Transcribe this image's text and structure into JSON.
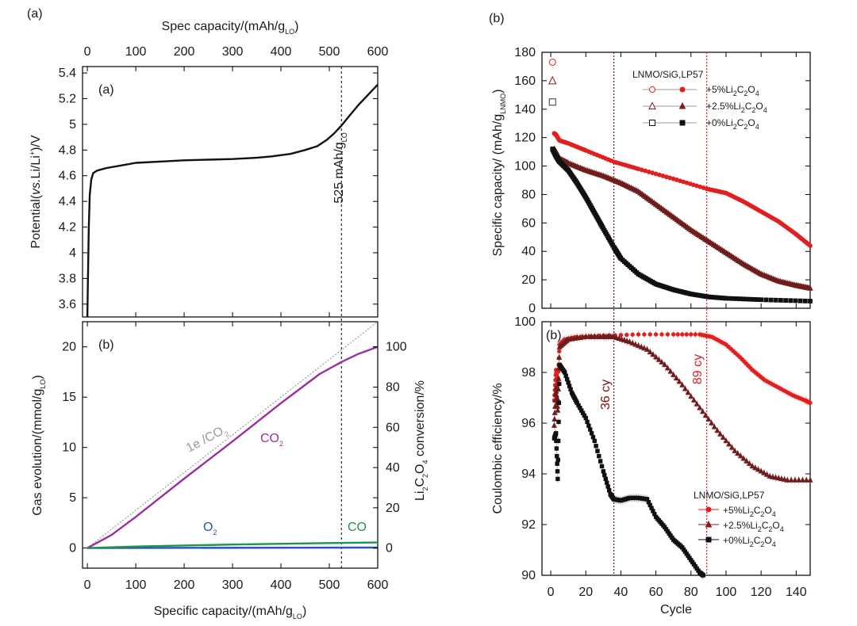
{
  "figure_labels": {
    "left_panel": "(a)",
    "right_panel": "(b)"
  },
  "chart_data": [
    {
      "type": "line",
      "panel_label": "(a)",
      "top_axis": {
        "label": "Spec capacity/(mAh/g",
        "label_sub": "LO",
        "label_tail": ")",
        "ticks": [
          0,
          100,
          200,
          300,
          400,
          500,
          600
        ]
      },
      "ylabel": {
        "pre": "Potential(",
        "italic": "vs.",
        "mid": "Li/Li",
        "sup": "+",
        "post": ")/V"
      },
      "xlim": [
        -10,
        600
      ],
      "ylim": [
        3.5,
        5.45
      ],
      "yticks": [
        3.6,
        3.8,
        4.0,
        4.2,
        4.4,
        4.6,
        4.8,
        5.0,
        5.2,
        5.4
      ],
      "marker_line": {
        "x": 525,
        "label": "525 mAh/g",
        "label_sub": "LO"
      },
      "series": [
        {
          "color": "#111111",
          "points": [
            [
              0,
              3.5
            ],
            [
              1,
              3.75
            ],
            [
              3,
              4.2
            ],
            [
              5,
              4.45
            ],
            [
              8,
              4.57
            ],
            [
              12,
              4.62
            ],
            [
              20,
              4.64
            ],
            [
              40,
              4.66
            ],
            [
              70,
              4.68
            ],
            [
              100,
              4.7
            ],
            [
              150,
              4.71
            ],
            [
              200,
              4.72
            ],
            [
              250,
              4.725
            ],
            [
              300,
              4.73
            ],
            [
              350,
              4.74
            ],
            [
              380,
              4.75
            ],
            [
              420,
              4.77
            ],
            [
              450,
              4.8
            ],
            [
              475,
              4.83
            ],
            [
              495,
              4.88
            ],
            [
              510,
              4.93
            ],
            [
              525,
              4.99
            ],
            [
              540,
              5.06
            ],
            [
              560,
              5.15
            ],
            [
              580,
              5.23
            ],
            [
              595,
              5.29
            ],
            [
              600,
              5.31
            ]
          ]
        }
      ]
    },
    {
      "type": "line",
      "panel_label": "(b)",
      "xlabel": "Specific capacity/(mAh/g",
      "xlabel_sub": "LO",
      "xlabel_tail": ")",
      "ylabel": "Gas evolution/(mmol/g",
      "ylabel_sub": "LO",
      "ylabel_tail": ")",
      "y2label": {
        "pre": "Li",
        "s1": "2",
        "m1": "C",
        "s2": "2",
        "m2": "O",
        "s3": "4",
        "post": " conversion/%"
      },
      "xlim": [
        -10,
        600
      ],
      "ylim": [
        -2,
        22.5
      ],
      "y2lim": [
        -10,
        112.5
      ],
      "xticks": [
        0,
        100,
        200,
        300,
        400,
        500,
        600
      ],
      "yticks": [
        0,
        5,
        10,
        15,
        20
      ],
      "y2ticks": [
        0,
        20,
        40,
        60,
        80,
        100
      ],
      "marker_line": {
        "x": 525
      },
      "series": [
        {
          "name": "1e /CO",
          "name_sub": "2",
          "color": "#9a9a9a",
          "dashed": true,
          "points": [
            [
              0,
              0
            ],
            [
              600,
              22.5
            ]
          ]
        },
        {
          "name": "CO",
          "name_sub": "2",
          "color": "#9b2f9c",
          "points": [
            [
              0,
              0
            ],
            [
              50,
              1.3
            ],
            [
              100,
              3.1
            ],
            [
              200,
              6.9
            ],
            [
              300,
              10.6
            ],
            [
              400,
              14.4
            ],
            [
              480,
              17.3
            ],
            [
              525,
              18.5
            ],
            [
              560,
              19.3
            ],
            [
              600,
              20.0
            ]
          ]
        },
        {
          "name": "O",
          "name_sub": "2",
          "color": "#2456b4",
          "points": [
            [
              0,
              0
            ],
            [
              600,
              0.05
            ]
          ]
        },
        {
          "name": "CO",
          "name_sub": "",
          "color": "#20944a",
          "points": [
            [
              0,
              0
            ],
            [
              100,
              0.15
            ],
            [
              300,
              0.35
            ],
            [
              500,
              0.5
            ],
            [
              600,
              0.55
            ]
          ]
        }
      ]
    },
    {
      "type": "scatter",
      "panel_label": "",
      "ylabel": "Specific capacity/ (mAh/g",
      "ylabel_sub": "LNMO",
      "ylabel_tail": ")",
      "xlim": [
        -5,
        148
      ],
      "ylim": [
        0,
        180
      ],
      "yticks": [
        0,
        20,
        40,
        60,
        80,
        100,
        120,
        140,
        160,
        180
      ],
      "legend": {
        "title": "LNMO/SiG,LP57",
        "position": "top-right",
        "entries": [
          {
            "pre": "+5%Li",
            "s1": "2",
            "m1": "C",
            "s2": "2",
            "m2": "O",
            "s3": "4",
            "open": "circle",
            "color": "#e02020"
          },
          {
            "pre": "+2.5%Li",
            "s1": "2",
            "m1": "C",
            "s2": "2",
            "m2": "O",
            "s3": "4",
            "open": "triangle",
            "color": "#8b1a1a"
          },
          {
            "pre": "+0%Li",
            "s1": "2",
            "m1": "C",
            "s2": "2",
            "m2": "O",
            "s3": "4",
            "open": "square",
            "color": "#111111"
          }
        ]
      },
      "first_cycle_points": [
        {
          "x": 1,
          "y": 173,
          "marker": "circle",
          "color": "#e02020"
        },
        {
          "x": 1,
          "y": 160,
          "marker": "triangle",
          "color": "#8b1a1a"
        },
        {
          "x": 1,
          "y": 145,
          "marker": "square",
          "color": "#333333"
        }
      ],
      "series": [
        {
          "name": "+5%Li2C2O4",
          "color": "#e02020",
          "marker": "circle",
          "points": [
            [
              2,
              123
            ],
            [
              3,
              122
            ],
            [
              5,
              118
            ],
            [
              10,
              116
            ],
            [
              20,
              111
            ],
            [
              36,
              103
            ],
            [
              50,
              98
            ],
            [
              70,
              91
            ],
            [
              89,
              84
            ],
            [
              100,
              81
            ],
            [
              110,
              75
            ],
            [
              120,
              68
            ],
            [
              130,
              61
            ],
            [
              140,
              52
            ],
            [
              148,
              44
            ]
          ]
        },
        {
          "name": "+2.5%Li2C2O4",
          "color": "#6e1c1c",
          "marker": "triangle",
          "points": [
            [
              2,
              112
            ],
            [
              4,
              108
            ],
            [
              5,
              105
            ],
            [
              10,
              102
            ],
            [
              20,
              97
            ],
            [
              30,
              93
            ],
            [
              40,
              88
            ],
            [
              50,
              82
            ],
            [
              60,
              73
            ],
            [
              70,
              64
            ],
            [
              80,
              55
            ],
            [
              90,
              47
            ],
            [
              100,
              39
            ],
            [
              110,
              31
            ],
            [
              120,
              24
            ],
            [
              130,
              19
            ],
            [
              140,
              16
            ],
            [
              148,
              14
            ]
          ]
        },
        {
          "name": "+0%Li2C2O4",
          "color": "#111111",
          "marker": "square",
          "points": [
            [
              1,
              112
            ],
            [
              3,
              107
            ],
            [
              5,
              103
            ],
            [
              10,
              97
            ],
            [
              15,
              88
            ],
            [
              20,
              78
            ],
            [
              25,
              67
            ],
            [
              30,
              56
            ],
            [
              36,
              43
            ],
            [
              40,
              35
            ],
            [
              50,
              24
            ],
            [
              60,
              17
            ],
            [
              70,
              13
            ],
            [
              80,
              10
            ],
            [
              90,
              8
            ],
            [
              100,
              7
            ],
            [
              120,
              6
            ],
            [
              148,
              5
            ]
          ]
        }
      ]
    },
    {
      "type": "scatter",
      "panel_label": "(b)",
      "xlabel": "Cycle",
      "ylabel": "Coulombic efficiency/%",
      "xlim": [
        -5,
        148
      ],
      "ylim": [
        90,
        100
      ],
      "xticks": [
        0,
        20,
        40,
        60,
        80,
        100,
        120,
        140
      ],
      "yticks": [
        90,
        92,
        94,
        96,
        98,
        100
      ],
      "vlines": [
        {
          "x": 36,
          "label": "36 cy",
          "color": "#7a1414"
        },
        {
          "x": 89,
          "label": "89 cy",
          "color": "#e02020"
        }
      ],
      "legend": {
        "title": "LNMO/SiG,LP57",
        "position": "bottom-right",
        "entries": [
          {
            "pre": "+5%Li",
            "s1": "2",
            "m1": "C",
            "s2": "2",
            "m2": "O",
            "s3": "4",
            "color": "#e02020",
            "marker": "circle"
          },
          {
            "pre": "+2.5%Li",
            "s1": "2",
            "m1": "C",
            "s2": "2",
            "m2": "O",
            "s3": "4",
            "color": "#8b1a1a",
            "marker": "triangle"
          },
          {
            "pre": "+0%Li",
            "s1": "2",
            "m1": "C",
            "s2": "2",
            "m2": "O",
            "s3": "4",
            "color": "#111111",
            "marker": "square"
          }
        ]
      },
      "series": [
        {
          "name": "+5%Li2C2O4",
          "color": "#e02020",
          "marker": "circle",
          "points": [
            [
              2,
              96.9
            ],
            [
              3,
              98.1
            ],
            [
              4,
              97.5
            ],
            [
              5,
              99.1
            ],
            [
              8,
              99.3
            ],
            [
              15,
              99.4
            ],
            [
              30,
              99.45
            ],
            [
              50,
              99.5
            ],
            [
              70,
              99.5
            ],
            [
              85,
              99.5
            ],
            [
              92,
              99.4
            ],
            [
              100,
              99.1
            ],
            [
              108,
              98.6
            ],
            [
              115,
              98.1
            ],
            [
              122,
              97.7
            ],
            [
              130,
              97.4
            ],
            [
              138,
              97.1
            ],
            [
              145,
              96.9
            ],
            [
              148,
              96.8
            ]
          ]
        },
        {
          "name": "+2.5%Li2C2O4",
          "color": "#6e1c1c",
          "marker": "triangle",
          "points": [
            [
              2,
              95.9
            ],
            [
              3,
              97.4
            ],
            [
              4,
              96.5
            ],
            [
              5,
              99.0
            ],
            [
              10,
              99.3
            ],
            [
              20,
              99.4
            ],
            [
              30,
              99.4
            ],
            [
              36,
              99.4
            ],
            [
              45,
              99.2
            ],
            [
              55,
              98.9
            ],
            [
              65,
              98.3
            ],
            [
              75,
              97.5
            ],
            [
              85,
              96.6
            ],
            [
              95,
              95.7
            ],
            [
              105,
              94.9
            ],
            [
              115,
              94.3
            ],
            [
              125,
              93.9
            ],
            [
              135,
              93.75
            ],
            [
              148,
              93.75
            ]
          ]
        },
        {
          "name": "+0%Li2C2O4",
          "color": "#111111",
          "marker": "square",
          "points": [
            [
              2,
              95.4
            ],
            [
              3,
              95.6
            ],
            [
              4,
              93.8
            ],
            [
              5,
              98.3
            ],
            [
              8,
              98.0
            ],
            [
              12,
              97.2
            ],
            [
              15,
              96.8
            ],
            [
              20,
              96.2
            ],
            [
              25,
              95.3
            ],
            [
              30,
              94.1
            ],
            [
              34,
              93.2
            ],
            [
              36,
              93.0
            ],
            [
              40,
              92.95
            ],
            [
              45,
              93.05
            ],
            [
              50,
              93.05
            ],
            [
              55,
              93.0
            ],
            [
              60,
              92.3
            ],
            [
              65,
              91.9
            ],
            [
              70,
              91.4
            ],
            [
              75,
              91.1
            ],
            [
              80,
              90.6
            ],
            [
              85,
              90.1
            ],
            [
              87,
              90.0
            ]
          ]
        }
      ]
    }
  ]
}
